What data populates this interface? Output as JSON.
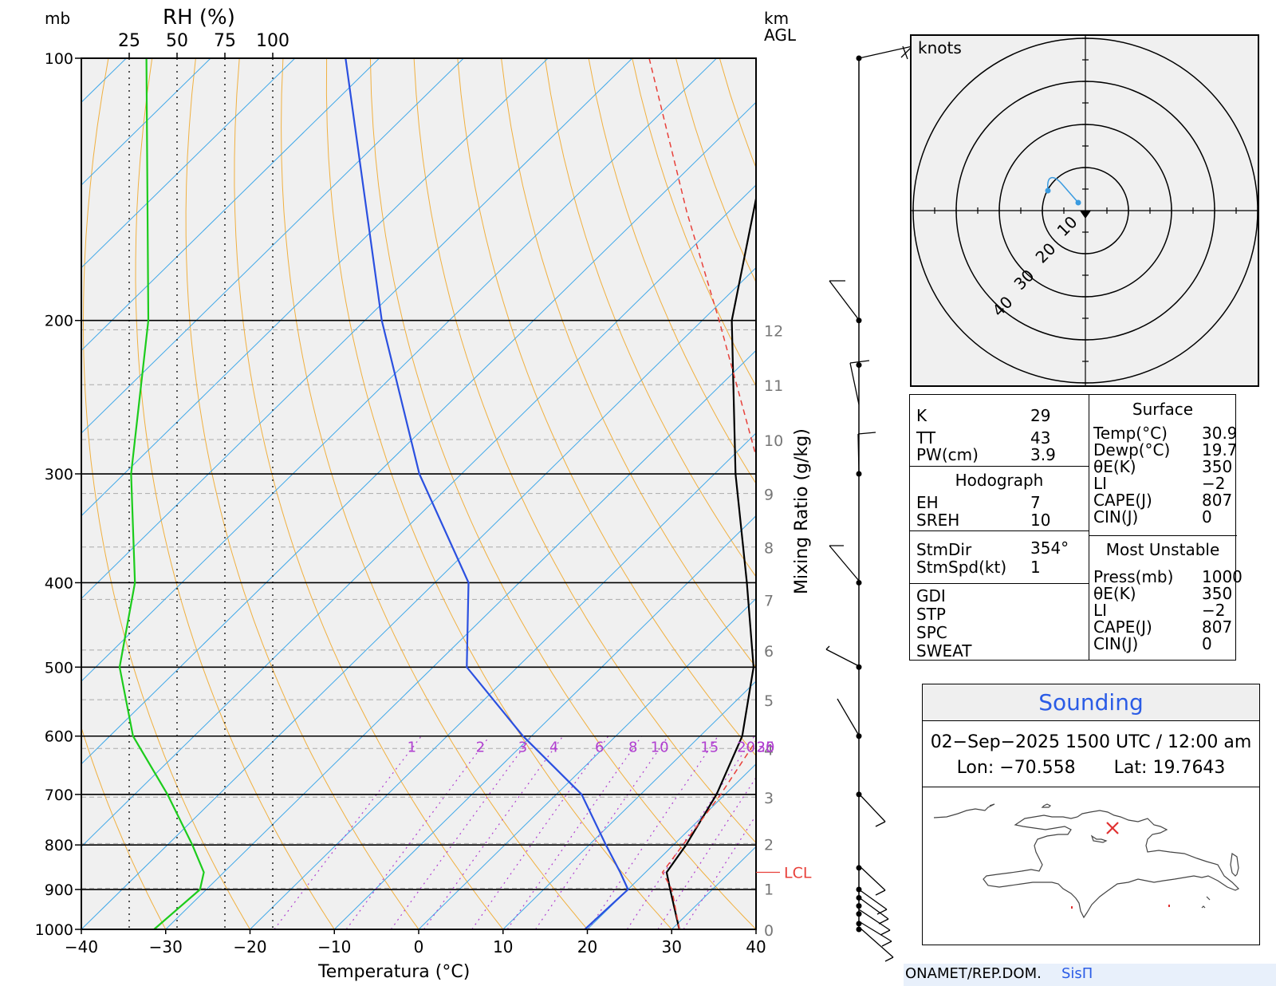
{
  "chart_data": {
    "type": "skew-t log-p",
    "ylabel": "mb",
    "xlabel": "Temperatura (°C)",
    "top_rh_label": "RH (%)",
    "rh_ticks": [
      "25",
      "50",
      "75",
      "100"
    ],
    "height_label": "km AGL",
    "height_ticks": [
      "0",
      "1",
      "2",
      "3",
      "4",
      "5",
      "6",
      "7",
      "8",
      "9",
      "10",
      "11",
      "12"
    ],
    "pressure_levels": [
      100,
      200,
      300,
      400,
      500,
      600,
      700,
      800,
      900,
      1000
    ],
    "temp_ticks": [
      -40,
      -30,
      -20,
      -10,
      0,
      10,
      20,
      30,
      40
    ],
    "xlim": [
      -40,
      40
    ],
    "ylim": [
      1000,
      100
    ],
    "mixing_ratio_label": "Mixing Ratio (g/kg)",
    "mixing_ratio_ticks": [
      "1",
      "2",
      "3",
      "4",
      "6",
      "8",
      "10",
      "15",
      "20",
      "25",
      "30"
    ],
    "lcl_label": "LCL",
    "series": [
      {
        "name": "Temperature",
        "color": "#000000",
        "points": [
          [
            1000,
            30.9
          ],
          [
            900,
            25.0
          ],
          [
            860,
            22.5
          ],
          [
            800,
            21.5
          ],
          [
            700,
            19.0
          ],
          [
            600,
            15.0
          ],
          [
            500,
            8.0
          ],
          [
            400,
            -3.0
          ],
          [
            300,
            -17.5
          ],
          [
            200,
            -36.5
          ],
          [
            100,
            -62.0
          ]
        ]
      },
      {
        "name": "Dewpoint",
        "color": "#2b50e0",
        "points": [
          [
            1000,
            19.7
          ],
          [
            900,
            20.0
          ],
          [
            860,
            17.0
          ],
          [
            800,
            12.0
          ],
          [
            700,
            3.0
          ],
          [
            600,
            -11.0
          ],
          [
            500,
            -26.0
          ],
          [
            400,
            -36.0
          ],
          [
            300,
            -55.0
          ],
          [
            200,
            -78.0
          ],
          [
            100,
            -114.0
          ]
        ]
      },
      {
        "name": "Parcel",
        "color": "#e8403a",
        "points": [
          [
            1000,
            30.9
          ],
          [
            900,
            25.2
          ],
          [
            860,
            22.0
          ],
          [
            700,
            19.5
          ],
          [
            600,
            17.0
          ],
          [
            500,
            11.0
          ],
          [
            400,
            1.0
          ],
          [
            300,
            -14.5
          ],
          [
            200,
            -38.0
          ],
          [
            150,
            -55.0
          ],
          [
            100,
            -78.0
          ]
        ]
      },
      {
        "name": "RH",
        "color": "#1ccc1c",
        "points": [
          [
            1000,
            38
          ],
          [
            900,
            62
          ],
          [
            860,
            64
          ],
          [
            800,
            58
          ],
          [
            700,
            45
          ],
          [
            600,
            27
          ],
          [
            500,
            20
          ],
          [
            400,
            28
          ],
          [
            300,
            26
          ],
          [
            200,
            35
          ],
          [
            100,
            34
          ]
        ]
      }
    ]
  },
  "hodograph": {
    "units_label": "knots",
    "ring_labels": [
      "10",
      "20",
      "30",
      "40"
    ],
    "ring_max_kt": 50
  },
  "indices": {
    "K_label": "K",
    "K": "29",
    "TT_label": "TT",
    "TT": "43",
    "PW_label": "PW(cm)",
    "PW": "3.9",
    "hodo_title": "Hodograph",
    "EH_label": "EH",
    "EH": "7",
    "SREH_label": "SREH",
    "SREH": "10",
    "StmDir_label": "StmDir",
    "StmDir": "354°",
    "StmSpd_label": "StmSpd(kt)",
    "StmSpd": "1",
    "GDI_label": "GDI",
    "STP_label": "STP",
    "SPC_label": "SPC",
    "SWEAT_label": "SWEAT",
    "surface_title": "Surface",
    "temp_label": "Temp(°C)",
    "temp": "30.9",
    "dewp_label": "Dewp(°C)",
    "dewp": "19.7",
    "theta_label": "θE(K)",
    "theta": "350",
    "li_label": "LI",
    "li": "−2",
    "cape_label": "CAPE(J)",
    "cape": "807",
    "cin_label": "CIN(J)",
    "cin": "0",
    "mu_title": "Most Unstable",
    "mu_press_label": "Press(mb)",
    "mu_press": "1000",
    "mu_theta_label": "θE(K)",
    "mu_theta": "350",
    "mu_li_label": "LI",
    "mu_li": "−2",
    "mu_cape_label": "CAPE(J)",
    "mu_cape": "807",
    "mu_cin_label": "CIN(J)",
    "mu_cin": "0"
  },
  "sounding": {
    "title": "Sounding",
    "datetime": "02−Sep−2025 1500 UTC / 12:00 am",
    "lon_label": "Lon:",
    "lon": "−70.558",
    "lat_label": "Lat:",
    "lat": "19.7643"
  },
  "footer": {
    "org": "ONAMET/REP.DOM.",
    "system": "SisΠ"
  }
}
